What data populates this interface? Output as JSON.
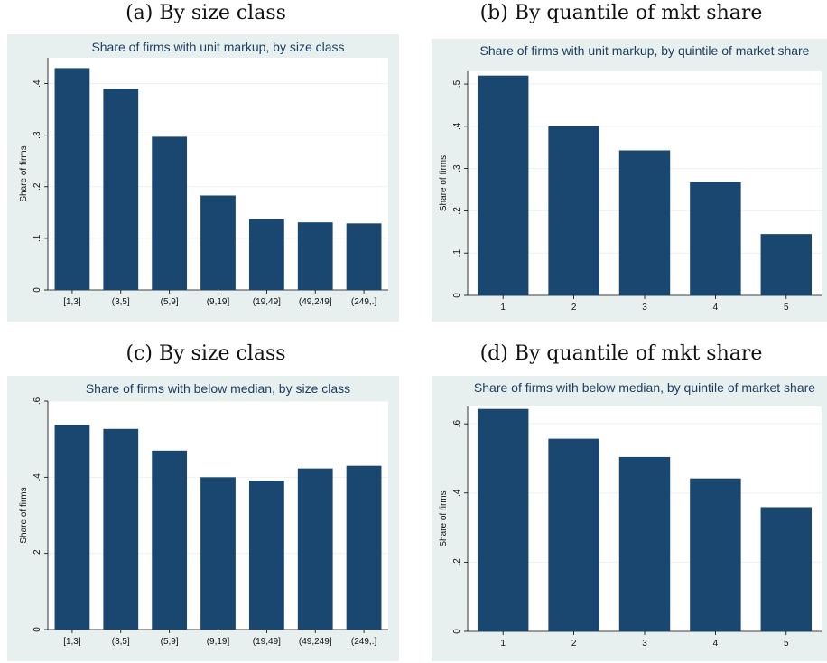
{
  "captions": {
    "a": "(a) By size class",
    "b": "(b) By quantile of mkt share",
    "c": "(c) By size class",
    "d": "(d) By quantile of mkt share"
  },
  "colors": {
    "bar": "#1a476f",
    "frame": "#e8efef",
    "plot_bg": "#ffffff",
    "title": "#1c3d5f"
  },
  "chart_data": [
    {
      "id": "a",
      "type": "bar",
      "title": "Share of firms with unit markup, by size class",
      "xlabel": "",
      "ylabel": "Share of firms",
      "categories": [
        "[1,3]",
        "(3,5]",
        "(5,9]",
        "(9,19]",
        "(19,49]",
        "(49,249]",
        "(249,.]"
      ],
      "values": [
        0.43,
        0.39,
        0.297,
        0.183,
        0.137,
        0.131,
        0.129
      ],
      "ylim": [
        0,
        0.45
      ],
      "yticks": [
        0,
        0.1,
        0.2,
        0.3,
        0.4
      ],
      "ytick_labels": [
        "0",
        ".1",
        ".2",
        ".3",
        ".4"
      ],
      "grid": true
    },
    {
      "id": "b",
      "type": "bar",
      "title": "Share of firms with unit markup, by quintile of market share",
      "xlabel": "",
      "ylabel": "Share of firms",
      "categories": [
        "1",
        "2",
        "3",
        "4",
        "5"
      ],
      "values": [
        0.52,
        0.4,
        0.343,
        0.268,
        0.145
      ],
      "ylim": [
        0,
        0.53
      ],
      "yticks": [
        0,
        0.1,
        0.2,
        0.3,
        0.4,
        0.5
      ],
      "ytick_labels": [
        "0",
        ".1",
        ".2",
        ".3",
        ".4",
        ".5"
      ],
      "grid": true
    },
    {
      "id": "c",
      "type": "bar",
      "title": "Share of firms with below median, by size class",
      "xlabel": "",
      "ylabel": "Share of firms",
      "categories": [
        "[1,3]",
        "(3,5]",
        "(5,9]",
        "(9,19]",
        "(19,49]",
        "(49,249]",
        "(249,.]"
      ],
      "values": [
        0.537,
        0.527,
        0.47,
        0.4,
        0.391,
        0.423,
        0.43
      ],
      "ylim": [
        0,
        0.6
      ],
      "yticks": [
        0,
        0.2,
        0.4,
        0.6
      ],
      "ytick_labels": [
        "0",
        ".2",
        ".4",
        ".6"
      ],
      "grid": true
    },
    {
      "id": "d",
      "type": "bar",
      "title": "Share of firms with below median, by quintile of market share",
      "xlabel": "",
      "ylabel": "Share of firms",
      "categories": [
        "1",
        "2",
        "3",
        "4",
        "5"
      ],
      "values": [
        0.643,
        0.557,
        0.504,
        0.442,
        0.359
      ],
      "ylim": [
        0,
        0.65
      ],
      "yticks": [
        0,
        0.2,
        0.4,
        0.6
      ],
      "ytick_labels": [
        "0",
        ".2",
        ".4",
        ".6"
      ],
      "grid": true
    }
  ]
}
